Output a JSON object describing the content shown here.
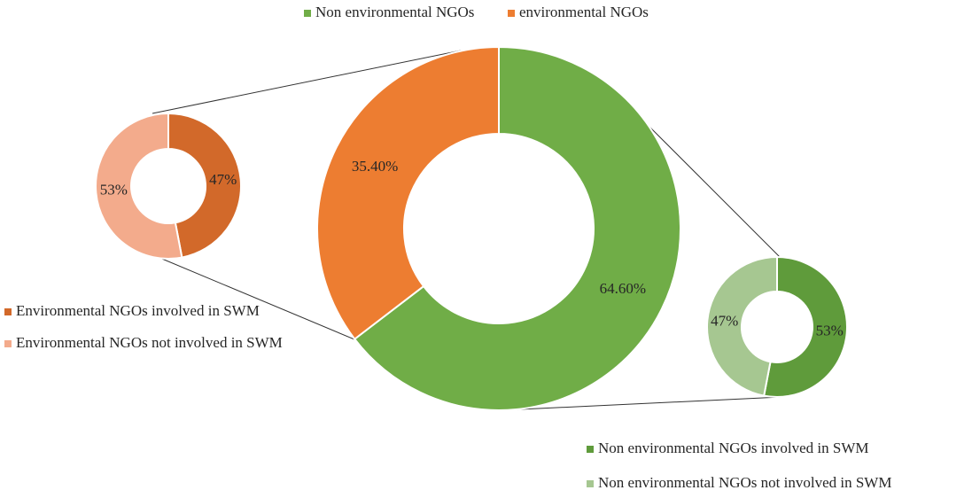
{
  "chart_data": [
    {
      "type": "donut",
      "categories": [
        "Non environmental NGOs",
        "environmental NGOs"
      ],
      "values": [
        64.6,
        35.4
      ],
      "value_labels": [
        "64.60%",
        "35.40%"
      ],
      "colors": [
        "#70ad47",
        "#ed7d31"
      ]
    },
    {
      "type": "donut",
      "categories": [
        "Environmental NGOs involved in SWM",
        "Environmental NGOs not involved in SWM"
      ],
      "values": [
        47,
        53
      ],
      "value_labels": [
        "47%",
        "53%"
      ],
      "colors": [
        "#d2692a",
        "#f3ab8c"
      ]
    },
    {
      "type": "donut",
      "categories": [
        "Non environmental NGOs involved in SWM",
        "Non environmental NGOs not involved in SWM"
      ],
      "values": [
        53,
        47
      ],
      "value_labels": [
        "53%",
        "47%"
      ],
      "colors": [
        "#5f9b3b",
        "#a6c791"
      ]
    }
  ]
}
